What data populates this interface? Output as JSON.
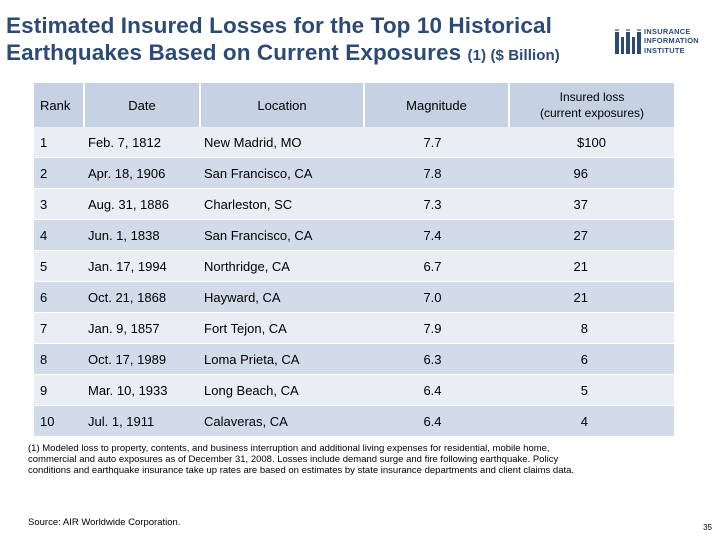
{
  "title": {
    "line1": "Estimated Insured Losses for the Top 10 Historical",
    "line2": "Earthquakes Based on Current Exposures",
    "suffix": "(1) ($ Billion)"
  },
  "logo": {
    "line1": "INSURANCE",
    "line2": "INFORMATION",
    "line3": "INSTITUTE",
    "color": "#2b4a76"
  },
  "table": {
    "headers": {
      "rank": "Rank",
      "date": "Date",
      "location": "Location",
      "magnitude": "Magnitude",
      "loss_line1": "Insured loss",
      "loss_line2": "(current exposures)"
    },
    "rows": [
      {
        "rank": "1",
        "date": "Feb. 7, 1812",
        "location": "New Madrid, MO",
        "magnitude": "7.7",
        "loss": "$100"
      },
      {
        "rank": "2",
        "date": "Apr. 18, 1906",
        "location": "San Francisco, CA",
        "magnitude": "7.8",
        "loss": "96"
      },
      {
        "rank": "3",
        "date": "Aug. 31, 1886",
        "location": "Charleston, SC",
        "magnitude": "7.3",
        "loss": "37"
      },
      {
        "rank": "4",
        "date": "Jun. 1, 1838",
        "location": "San Francisco, CA",
        "magnitude": "7.4",
        "loss": "27"
      },
      {
        "rank": "5",
        "date": "Jan. 17, 1994",
        "location": "Northridge, CA",
        "magnitude": "6.7",
        "loss": "21"
      },
      {
        "rank": "6",
        "date": "Oct. 21, 1868",
        "location": "Hayward, CA",
        "magnitude": "7.0",
        "loss": "21"
      },
      {
        "rank": "7",
        "date": "Jan. 9, 1857",
        "location": "Fort Tejon, CA",
        "magnitude": "7.9",
        "loss": "8"
      },
      {
        "rank": "8",
        "date": "Oct. 17, 1989",
        "location": "Loma Prieta, CA",
        "magnitude": "6.3",
        "loss": "6"
      },
      {
        "rank": "9",
        "date": "Mar. 10, 1933",
        "location": "Long Beach, CA",
        "magnitude": "6.4",
        "loss": "5"
      },
      {
        "rank": "10",
        "date": "Jul. 1, 1911",
        "location": "Calaveras, CA",
        "magnitude": "6.4",
        "loss": "4"
      }
    ]
  },
  "footnote": "(1) Modeled loss to property, contents, and business interruption and additional living expenses for residential, mobile home, commercial and auto exposures as of December 31, 2008. Losses include demand surge and fire following earthquake. Policy conditions and earthquake insurance take up rates are based on estimates by state insurance departments and client claims data.",
  "source": "Source: AIR Worldwide Corporation.",
  "page_number": "35",
  "colors": {
    "title": "#2b4a76",
    "header_bg": "#c6d2e4",
    "row_light": "#e9edf4",
    "row_dark": "#d2dbea"
  }
}
